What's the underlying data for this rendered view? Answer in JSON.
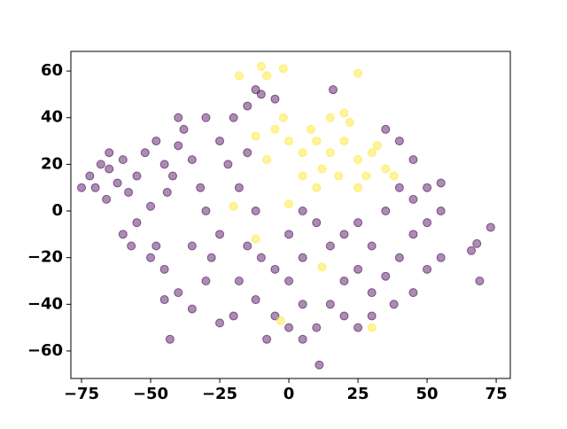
{
  "chart_data": {
    "type": "scatter",
    "xlim": [
      -78.85,
      80.1
    ],
    "ylim": [
      -71.8,
      68.4
    ],
    "xticks": [
      {
        "value": -75,
        "label": "−75"
      },
      {
        "value": -50,
        "label": "−50"
      },
      {
        "value": -25,
        "label": "−25"
      },
      0,
      25,
      50,
      75
    ],
    "yticks": [
      {
        "value": -60,
        "label": "−60"
      },
      {
        "value": -40,
        "label": "−40"
      },
      {
        "value": -20,
        "label": "−20"
      },
      0,
      20,
      40,
      60
    ],
    "series": [
      {
        "color": "#440154",
        "x": [
          -70,
          -72,
          -68,
          -65,
          -62,
          -60,
          -66,
          -58,
          -55,
          -52,
          -48,
          -45,
          -42,
          -40,
          -38,
          -35,
          -44,
          -50,
          -55,
          -60,
          -48,
          -45,
          -40,
          -35,
          -30,
          -28,
          -25,
          -30,
          -32,
          -25,
          -20,
          -15,
          -10,
          -5,
          -22,
          -18,
          -12,
          -15,
          -10,
          -5,
          -18,
          -12,
          -5,
          0,
          5,
          -20,
          0,
          5,
          0,
          5,
          10,
          15,
          20,
          25,
          30,
          25,
          20,
          30,
          35,
          40,
          45,
          50,
          45,
          50,
          55,
          40,
          35,
          38,
          30,
          20,
          15,
          10,
          45,
          50,
          55,
          -65,
          -75,
          -40,
          -30,
          -45,
          -50,
          -57,
          -25,
          -8,
          5,
          25,
          40,
          35,
          45,
          -15,
          68,
          73,
          66,
          69,
          -43,
          11,
          16,
          -12,
          55,
          -35
        ],
        "values": [
          10,
          15,
          20,
          18,
          12,
          22,
          5,
          8,
          15,
          25,
          30,
          20,
          15,
          28,
          35,
          22,
          8,
          2,
          -5,
          -10,
          -15,
          -25,
          -35,
          -42,
          -30,
          -20,
          -10,
          0,
          10,
          30,
          40,
          45,
          50,
          48,
          20,
          10,
          0,
          -15,
          -20,
          -25,
          -30,
          -38,
          -45,
          -50,
          -40,
          -45,
          -30,
          -20,
          -10,
          0,
          -5,
          -15,
          -10,
          -5,
          -15,
          -25,
          -30,
          -35,
          -28,
          -20,
          -10,
          -5,
          5,
          10,
          0,
          10,
          0,
          -40,
          -45,
          -45,
          -40,
          -50,
          -35,
          -25,
          -20,
          25,
          10,
          40,
          40,
          -38,
          -20,
          -15,
          -48,
          -55,
          -55,
          -50,
          30,
          35,
          22,
          25,
          -14,
          -7,
          -17,
          -30,
          -55,
          -66,
          52,
          52,
          12,
          -15
        ]
      },
      {
        "color": "#fde725",
        "x": [
          15,
          10,
          20,
          5,
          25,
          12,
          18,
          8,
          22,
          0,
          -5,
          -12,
          30,
          28,
          35,
          15,
          5,
          -8,
          20,
          10,
          -18,
          -10,
          -8,
          -2,
          25,
          30,
          -3,
          12,
          -12,
          -20,
          0,
          32,
          -2,
          25,
          38
        ],
        "values": [
          25,
          30,
          30,
          25,
          22,
          18,
          15,
          35,
          38,
          30,
          35,
          32,
          25,
          15,
          18,
          40,
          15,
          22,
          42,
          10,
          58,
          62,
          58,
          61,
          59,
          -50,
          -47,
          -24,
          -12,
          2,
          3,
          28,
          40,
          10,
          15
        ]
      }
    ]
  }
}
